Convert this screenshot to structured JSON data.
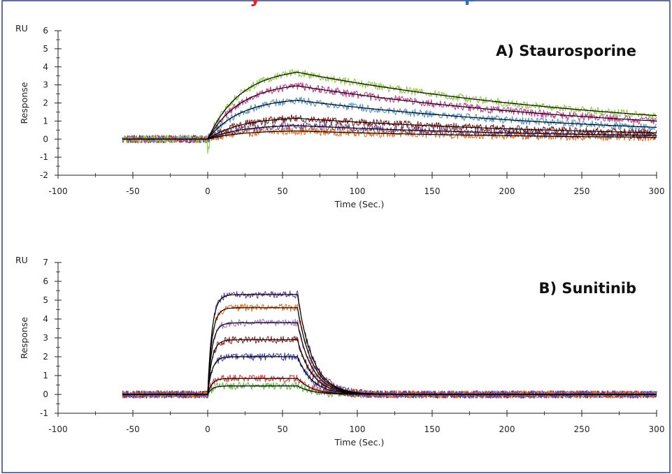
{
  "header_partial": {
    "left_text": "y",
    "right_text": "p",
    "left_color": "#e0282e",
    "right_color": "#2a6fb5"
  },
  "frame_color": "#2f3f86",
  "chart_data": [
    {
      "type": "line",
      "title": "A) Staurosporine",
      "unit": "RU",
      "xlabel": "Time (Sec.)",
      "ylabel": "Response",
      "xlim": [
        -100,
        300
      ],
      "ylim": [
        -2,
        6
      ],
      "xticks": [
        -100,
        -50,
        0,
        50,
        100,
        150,
        200,
        250,
        300
      ],
      "yticks": [
        -2,
        -1,
        0,
        1,
        2,
        3,
        4,
        5,
        6
      ],
      "x_range_data": [
        -57,
        300
      ],
      "injection_end": 60,
      "grid": false,
      "legend": "none",
      "fit_color": "#000000",
      "series": [
        {
          "color": "#8cc63f",
          "plateau": 3.7,
          "end_value": 1.3
        },
        {
          "color": "#c0358a",
          "plateau": 2.95,
          "end_value": 1.0
        },
        {
          "color": "#4a90c8",
          "plateau": 2.15,
          "end_value": 0.65
        },
        {
          "color": "#7a1a1a",
          "plateau": 1.15,
          "end_value": 0.35
        },
        {
          "color": "#6a3a8a",
          "plateau": 0.75,
          "end_value": 0.2
        },
        {
          "color": "#e06a20",
          "plateau": 0.45,
          "end_value": 0.1
        }
      ]
    },
    {
      "type": "line",
      "title": "B) Sunitinib",
      "unit": "RU",
      "xlabel": "Time (Sec.)",
      "ylabel": "Response",
      "xlim": [
        -100,
        300
      ],
      "ylim": [
        -1,
        7
      ],
      "xticks": [
        -100,
        -50,
        0,
        50,
        100,
        150,
        200,
        250,
        300
      ],
      "yticks": [
        -1,
        0,
        1,
        2,
        3,
        4,
        5,
        6,
        7
      ],
      "x_range_data": [
        -57,
        300
      ],
      "injection_end": 60,
      "grid": false,
      "legend": "none",
      "fit_color": "#000000",
      "series": [
        {
          "color": "#5a3a9a",
          "plateau": 5.3,
          "end_value": 0.0
        },
        {
          "color": "#e06a20",
          "plateau": 4.6,
          "end_value": 0.0
        },
        {
          "color": "#a070c0",
          "plateau": 3.8,
          "end_value": 0.0
        },
        {
          "color": "#8a2020",
          "plateau": 2.9,
          "end_value": 0.0
        },
        {
          "color": "#3a3aa0",
          "plateau": 2.0,
          "end_value": 0.0
        },
        {
          "color": "#e04040",
          "plateau": 0.85,
          "end_value": 0.0
        },
        {
          "color": "#5cb83c",
          "plateau": 0.45,
          "end_value": 0.0
        }
      ]
    }
  ]
}
